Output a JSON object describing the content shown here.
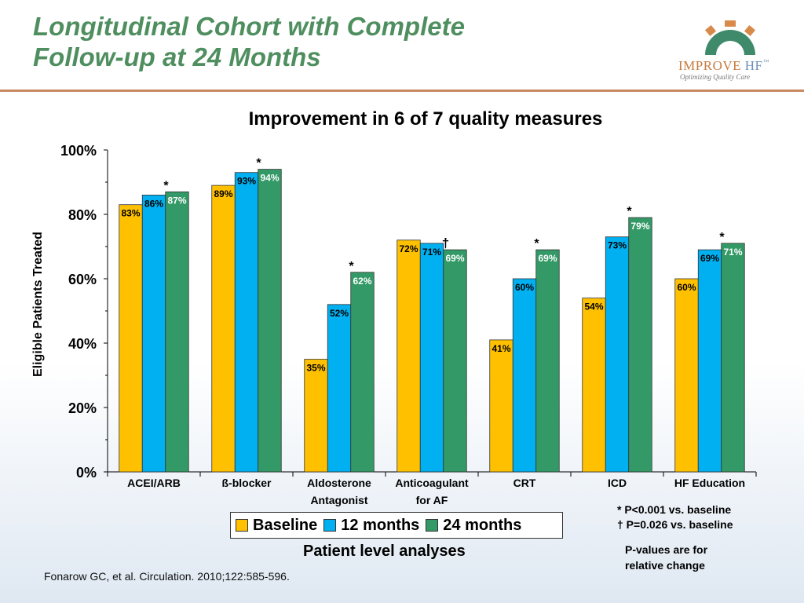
{
  "slide": {
    "title_line1": "Longitudinal Cohort with Complete",
    "title_line2": "Follow-up at 24 Months",
    "logo_word1": "IMPROVE",
    "logo_word2": "HF",
    "logo_tm": "™",
    "logo_tagline": "Optimizing Quality Care",
    "xaxis_title": "Patient level analyses",
    "note1": "* P<0.001 vs. baseline",
    "note2": "† P=0.026 vs. baseline",
    "note3_line1": "P-values are for",
    "note3_line2": "relative change",
    "citation": "Fonarow GC, et al. Circulation. 2010;122:585-596."
  },
  "chart_data": {
    "type": "bar",
    "title": "Improvement in 6 of 7 quality measures",
    "ylabel": "Eligible Patients Treated",
    "ylim": [
      0,
      100
    ],
    "yticks": [
      "0%",
      "20%",
      "40%",
      "60%",
      "80%",
      "100%"
    ],
    "categories": [
      [
        "ACEI/ARB"
      ],
      [
        "ß-blocker"
      ],
      [
        "Aldosterone",
        "Antagonist"
      ],
      [
        "Anticoagulant",
        "for AF"
      ],
      [
        "CRT"
      ],
      [
        "ICD"
      ],
      [
        "HF Education"
      ]
    ],
    "series": [
      {
        "name": "Baseline",
        "color": "#ffc000",
        "values": [
          83,
          89,
          35,
          72,
          41,
          54,
          60
        ],
        "labels": [
          "83%",
          "89%",
          "35%",
          "72%",
          "41%",
          "54%",
          "60%"
        ],
        "label_color": "#000000"
      },
      {
        "name": "12 months",
        "color": "#00b0f0",
        "values": [
          86,
          93,
          52,
          71,
          60,
          73,
          69
        ],
        "labels": [
          "86%",
          "93%",
          "52%",
          "71%",
          "60%",
          "73%",
          "69%"
        ],
        "label_color": "#000000"
      },
      {
        "name": "24 months",
        "color": "#339966",
        "values": [
          87,
          94,
          62,
          69,
          69,
          79,
          71
        ],
        "labels": [
          "87%",
          "94%",
          "62%",
          "69%",
          "69%",
          "79%",
          "71%"
        ],
        "label_color": "#ffffff"
      }
    ],
    "significance": [
      "*",
      "*",
      "*",
      "†",
      "*",
      "*",
      "*"
    ],
    "legend_position": "bottom",
    "grid": false
  }
}
